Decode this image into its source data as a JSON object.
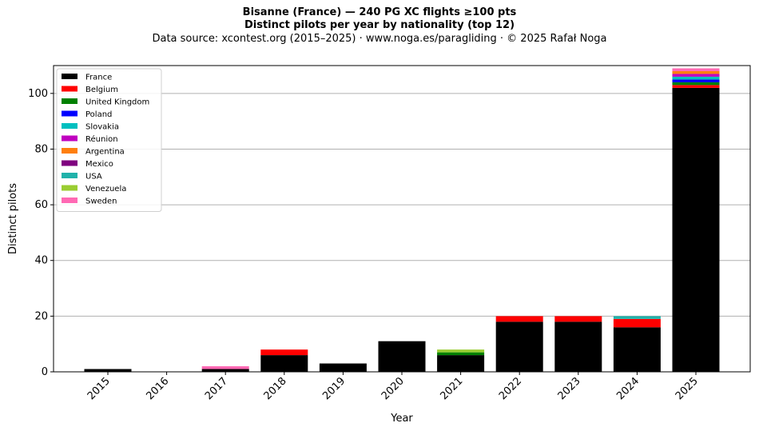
{
  "header": {
    "title": "Bisanne (France)  —  240 PG XC flights ≥100 pts",
    "subtitle": "Distinct pilots per year by nationality (top 12)",
    "source": "Data source: xcontest.org (2015–2025)  ·  www.noga.es/paragliding  ·  © 2025 Rafał Noga"
  },
  "chart_data": {
    "type": "bar",
    "stacked": true,
    "xlabel": "Year",
    "ylabel": "Distinct pilots",
    "ylim": [
      0,
      110
    ],
    "yticks": [
      0,
      20,
      40,
      60,
      80,
      100
    ],
    "grid": "y",
    "legend_position": "top-left",
    "categories": [
      "2015",
      "2016",
      "2017",
      "2018",
      "2019",
      "2020",
      "2021",
      "2022",
      "2023",
      "2024",
      "2025"
    ],
    "series": [
      {
        "name": "France",
        "color": "#000000",
        "values": [
          1,
          0,
          1,
          6,
          3,
          11,
          6,
          18,
          18,
          16,
          102
        ]
      },
      {
        "name": "Belgium",
        "color": "#ff0000",
        "values": [
          0,
          0,
          0,
          2,
          0,
          0,
          0,
          2,
          2,
          3,
          1
        ]
      },
      {
        "name": "United Kingdom",
        "color": "#008000",
        "values": [
          0,
          0,
          0,
          0,
          0,
          0,
          1,
          0,
          0,
          0,
          1
        ]
      },
      {
        "name": "Poland",
        "color": "#0000ff",
        "values": [
          0,
          0,
          0,
          0,
          0,
          0,
          0,
          0,
          0,
          0,
          1
        ]
      },
      {
        "name": "Slovakia",
        "color": "#00bfbf",
        "values": [
          0,
          0,
          0,
          0,
          0,
          0,
          0,
          0,
          0,
          0,
          1
        ]
      },
      {
        "name": "Réunion",
        "color": "#bf00bf",
        "values": [
          0,
          0,
          0,
          0,
          0,
          0,
          0,
          0,
          0,
          0,
          1
        ]
      },
      {
        "name": "Argentina",
        "color": "#ff7f0e",
        "values": [
          0,
          0,
          0,
          0,
          0,
          0,
          0,
          0,
          0,
          0,
          1
        ]
      },
      {
        "name": "Mexico",
        "color": "#800080",
        "values": [
          0,
          0,
          0,
          0,
          0,
          0,
          0,
          0,
          0,
          0,
          0
        ]
      },
      {
        "name": "USA",
        "color": "#20b2aa",
        "values": [
          0,
          0,
          0,
          0,
          0,
          0,
          0,
          0,
          0,
          1,
          0
        ]
      },
      {
        "name": "Venezuela",
        "color": "#9acd32",
        "values": [
          0,
          0,
          0,
          0,
          0,
          0,
          1,
          0,
          0,
          0,
          0
        ]
      },
      {
        "name": "Sweden",
        "color": "#ff69b4",
        "values": [
          0,
          0,
          1,
          0,
          0,
          0,
          0,
          0,
          0,
          0,
          1
        ]
      }
    ]
  }
}
